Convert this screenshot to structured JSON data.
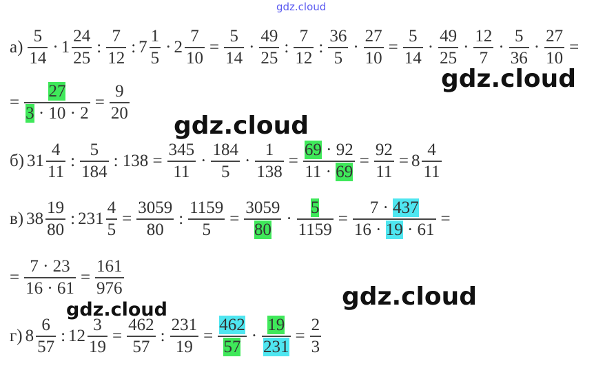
{
  "watermarks": {
    "top": "gdz.cloud",
    "w1": "gdz.cloud",
    "w2": "gdz.cloud",
    "w3": "gdz.cloud",
    "w4": "gdz.cloud"
  },
  "colors": {
    "green": "#3fe85a",
    "cyan": "#4fe6f0"
  },
  "lines": [
    {
      "tokens": [
        {
          "t": "а)"
        },
        {
          "n": "5",
          "d": "14"
        },
        {
          "t": "·"
        },
        {
          "w": "1",
          "n": "24",
          "d": "25"
        },
        {
          "t": ":"
        },
        {
          "n": "7",
          "d": "12"
        },
        {
          "t": ":"
        },
        {
          "w": "7",
          "n": "1",
          "d": "5"
        },
        {
          "t": "·"
        },
        {
          "w": "2",
          "n": "7",
          "d": "10"
        },
        {
          "t": "="
        },
        {
          "n": "5",
          "d": "14"
        },
        {
          "t": "·"
        },
        {
          "n": "49",
          "d": "25"
        },
        {
          "t": ":"
        },
        {
          "n": "7",
          "d": "12"
        },
        {
          "t": ":"
        },
        {
          "n": "36",
          "d": "5"
        },
        {
          "t": "·"
        },
        {
          "n": "27",
          "d": "10"
        },
        {
          "t": "="
        },
        {
          "n": "5",
          "d": "14"
        },
        {
          "t": "·"
        },
        {
          "n": "49",
          "d": "25"
        },
        {
          "t": "·"
        },
        {
          "n": "12",
          "d": "7"
        },
        {
          "t": "·"
        },
        {
          "n": "5",
          "d": "36"
        },
        {
          "t": "·"
        },
        {
          "n": "27",
          "d": "10"
        },
        {
          "t": "="
        }
      ]
    },
    {
      "tokens": [
        {
          "t": "="
        },
        {
          "n": [
            {
              "s": "27",
              "hl": "green"
            }
          ],
          "d": [
            {
              "s": "3",
              "hl": "green"
            },
            {
              "s": " · 10 · 2"
            }
          ]
        },
        {
          "t": "="
        },
        {
          "n": "9",
          "d": "20"
        }
      ]
    },
    {
      "tokens": [
        {
          "t": "б)"
        },
        {
          "w": "31",
          "n": "4",
          "d": "11"
        },
        {
          "t": ":"
        },
        {
          "n": "5",
          "d": "184"
        },
        {
          "t": ": 138 ="
        },
        {
          "n": "345",
          "d": "11"
        },
        {
          "t": "·"
        },
        {
          "n": "184",
          "d": "5"
        },
        {
          "t": "·"
        },
        {
          "n": "1",
          "d": "138"
        },
        {
          "t": "="
        },
        {
          "n": [
            {
              "s": "69",
              "hl": "green"
            },
            {
              "s": " · 92"
            }
          ],
          "d": [
            {
              "s": "11 · "
            },
            {
              "s": "69",
              "hl": "green"
            }
          ]
        },
        {
          "t": "="
        },
        {
          "n": "92",
          "d": "11"
        },
        {
          "t": "="
        },
        {
          "w": "8",
          "n": "4",
          "d": "11"
        }
      ]
    },
    {
      "tokens": [
        {
          "t": "в)"
        },
        {
          "w": "38",
          "n": "19",
          "d": "80"
        },
        {
          "t": ":"
        },
        {
          "w": "231",
          "n": "4",
          "d": "5"
        },
        {
          "t": "="
        },
        {
          "n": "3059",
          "d": "80"
        },
        {
          "t": ":"
        },
        {
          "n": "1159",
          "d": "5"
        },
        {
          "t": "="
        },
        {
          "n": "3059",
          "d": [
            {
              "s": "80",
              "hl": "green"
            }
          ]
        },
        {
          "t": "·"
        },
        {
          "n": [
            {
              "s": "5",
              "hl": "green"
            }
          ],
          "d": "1159"
        },
        {
          "t": "="
        },
        {
          "n": [
            {
              "s": "7 · "
            },
            {
              "s": "437",
              "hl": "cyan"
            }
          ],
          "d": [
            {
              "s": "16 · "
            },
            {
              "s": "19",
              "hl": "cyan"
            },
            {
              "s": " · 61"
            }
          ]
        },
        {
          "t": "="
        }
      ]
    },
    {
      "tokens": [
        {
          "t": "="
        },
        {
          "n": "7 · 23",
          "d": "16 · 61"
        },
        {
          "t": "="
        },
        {
          "n": "161",
          "d": "976"
        }
      ]
    },
    {
      "tokens": [
        {
          "t": "г)"
        },
        {
          "w": "8",
          "n": "6",
          "d": "57"
        },
        {
          "t": ":"
        },
        {
          "w": "12",
          "n": "3",
          "d": "19"
        },
        {
          "t": "="
        },
        {
          "n": "462",
          "d": "57"
        },
        {
          "t": ":"
        },
        {
          "n": "231",
          "d": "19"
        },
        {
          "t": "="
        },
        {
          "n": [
            {
              "s": "462",
              "hl": "cyan"
            }
          ],
          "d": [
            {
              "s": "57",
              "hl": "green"
            }
          ]
        },
        {
          "t": "·"
        },
        {
          "n": [
            {
              "s": "19",
              "hl": "green"
            }
          ],
          "d": [
            {
              "s": "231",
              "hl": "cyan"
            }
          ]
        },
        {
          "t": "="
        },
        {
          "n": "2",
          "d": "3"
        }
      ]
    }
  ]
}
